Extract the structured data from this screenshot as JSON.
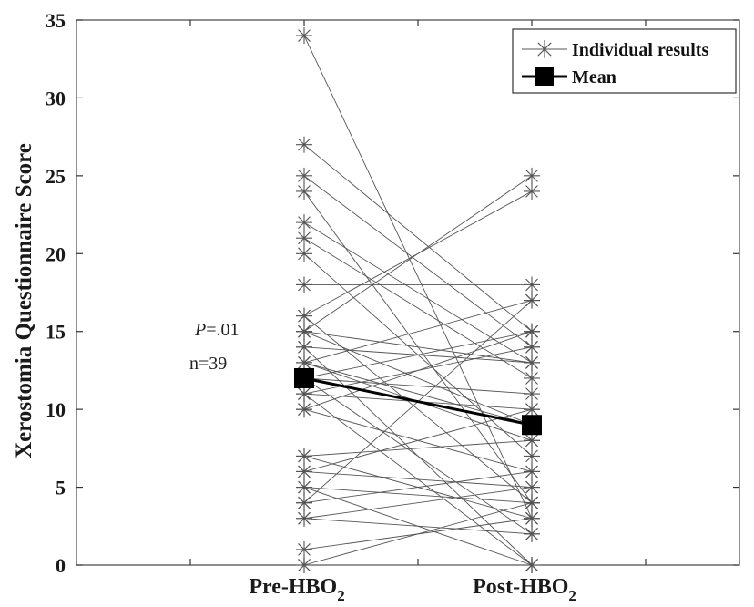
{
  "chart_data": {
    "type": "line",
    "categories": [
      "Pre-HBO",
      "Post-HBO"
    ],
    "category_subscript": "2",
    "ylabel": "Xerostomia Questionnaire Score",
    "ylim": [
      0,
      35
    ],
    "yticks": [
      0,
      5,
      10,
      15,
      20,
      25,
      30,
      35
    ],
    "grid": false,
    "legend": {
      "placement": "top-right",
      "entries": [
        {
          "label": "Individual results",
          "style": "thin line with asterisk markers"
        },
        {
          "label": "Mean",
          "style": "thick line with square markers"
        }
      ]
    },
    "annotations": {
      "p_symbol": "P",
      "p_value": "=.01",
      "n_text": "n=39"
    },
    "individual_pairs": [
      [
        34,
        3
      ],
      [
        27,
        15
      ],
      [
        25,
        14
      ],
      [
        24,
        4
      ],
      [
        22,
        13
      ],
      [
        21,
        12
      ],
      [
        20,
        7
      ],
      [
        18,
        18
      ],
      [
        16,
        24
      ],
      [
        16,
        4
      ],
      [
        15,
        25
      ],
      [
        15,
        9
      ],
      [
        14,
        13
      ],
      [
        13,
        17
      ],
      [
        13,
        8
      ],
      [
        12,
        15
      ],
      [
        12,
        2
      ],
      [
        12,
        11
      ],
      [
        11,
        10
      ],
      [
        11,
        14
      ],
      [
        11,
        0
      ],
      [
        10,
        15
      ],
      [
        10,
        6
      ],
      [
        7,
        8
      ],
      [
        7,
        3
      ],
      [
        6,
        10
      ],
      [
        6,
        5
      ],
      [
        5,
        0
      ],
      [
        5,
        4
      ],
      [
        4,
        17
      ],
      [
        4,
        6
      ],
      [
        3,
        5
      ],
      [
        3,
        2
      ],
      [
        1,
        3
      ],
      [
        0,
        0
      ],
      [
        0,
        4
      ],
      [
        15,
        13
      ],
      [
        14,
        0
      ],
      [
        13,
        9
      ]
    ],
    "mean": [
      12,
      9
    ],
    "colors": {
      "individual": "#555555",
      "mean": "#000000",
      "axis": "#222222"
    }
  }
}
